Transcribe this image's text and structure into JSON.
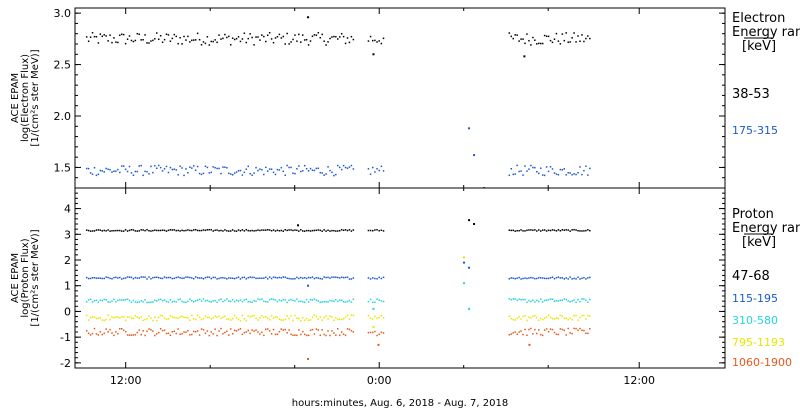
{
  "footer": "hours:minutes, Aug.  6, 2018 - Aug.  7, 2018",
  "chart_data": [
    {
      "type": "scatter",
      "panel": "electron",
      "ylabel_lines": [
        "ACE EPAM",
        "log(Electron Flux)",
        "[1/(cm²s ster MeV)]"
      ],
      "y_ticks": [
        "1.5",
        "2.0",
        "2.5",
        "3.0"
      ],
      "ylim": [
        1.3,
        3.05
      ],
      "x_ticks": [
        "12:00",
        "0:00",
        "12:00"
      ],
      "legend_title_lines": [
        "Electron",
        "Energy ranges",
        "[keV]"
      ],
      "series": [
        {
          "name": "38-53",
          "color": "#000000",
          "level": 2.75,
          "spread": 0.06,
          "spikes": [
            [
              0.44,
              2.96
            ],
            [
              0.57,
              2.6
            ],
            [
              0.87,
              2.58
            ]
          ]
        },
        {
          "name": "175-315",
          "color": "#1a5acd",
          "level": 1.47,
          "spread": 0.05,
          "spikes": [
            [
              0.76,
              1.88
            ],
            [
              0.77,
              1.62
            ],
            [
              0.79,
              1.3
            ]
          ]
        }
      ],
      "legend_sizes": [
        "big",
        "small"
      ]
    },
    {
      "type": "scatter",
      "panel": "proton",
      "ylabel_lines": [
        "ACE EPAM",
        "log(Proton Flux)",
        "[1/(cm²s ster MeV)]"
      ],
      "y_ticks": [
        "-2",
        "-1",
        "0",
        "1",
        "2",
        "3",
        "4"
      ],
      "ylim": [
        -2.2,
        4.8
      ],
      "x_ticks": [
        "12:00",
        "0:00",
        "12:00"
      ],
      "legend_title_lines": [
        "Proton",
        "Energy ranges",
        "[keV]"
      ],
      "series": [
        {
          "name": "47-68",
          "color": "#000000",
          "level": 3.15,
          "spread": 0.03,
          "spikes": [
            [
              0.42,
              3.35
            ],
            [
              0.76,
              3.55
            ],
            [
              0.77,
              3.4
            ]
          ]
        },
        {
          "name": "115-195",
          "color": "#1a5acd",
          "level": 1.3,
          "spread": 0.04,
          "spikes": [
            [
              0.75,
              1.9
            ],
            [
              0.76,
              1.7
            ],
            [
              0.44,
              1.0
            ]
          ]
        },
        {
          "name": "310-580",
          "color": "#22d3e0",
          "level": 0.42,
          "spread": 0.07,
          "spikes": [
            [
              0.75,
              1.1
            ],
            [
              0.76,
              0.1
            ],
            [
              0.57,
              0.1
            ]
          ]
        },
        {
          "name": "795-1193",
          "color": "#e6e600",
          "level": -0.25,
          "spread": 0.11,
          "spikes": [
            [
              0.75,
              2.1
            ],
            [
              0.57,
              -0.6
            ]
          ]
        },
        {
          "name": "1060-1900",
          "color": "#e8581a",
          "level": -0.8,
          "spread": 0.14,
          "spikes": [
            [
              0.44,
              -1.85
            ],
            [
              0.58,
              -1.3
            ],
            [
              0.88,
              -1.3
            ]
          ]
        }
      ],
      "legend_sizes": [
        "big",
        "small",
        "small",
        "small",
        "small"
      ]
    }
  ],
  "time_segments": [
    [
      0.0,
      0.53
    ],
    [
      0.56,
      0.59
    ],
    [
      0.84,
      1.0
    ]
  ]
}
